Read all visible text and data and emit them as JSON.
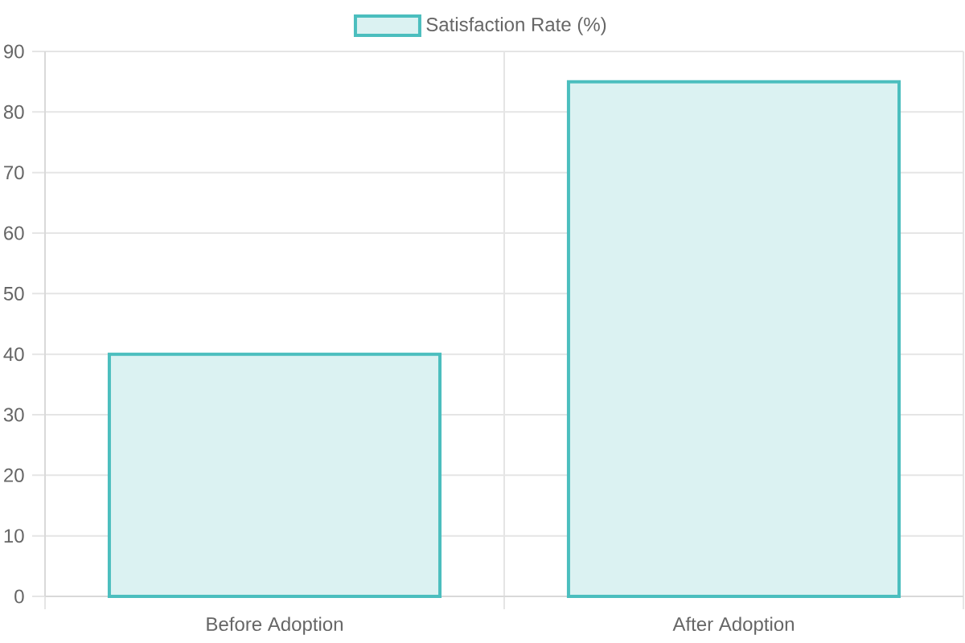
{
  "chart_data": {
    "type": "bar",
    "categories": [
      "Before Adoption",
      "After Adoption"
    ],
    "series": [
      {
        "name": "Satisfaction Rate (%)",
        "color": "#dbf2f2",
        "values": [
          40,
          85
        ]
      }
    ],
    "ylim": [
      0,
      90
    ],
    "yticks": [
      0,
      10,
      20,
      30,
      40,
      50,
      60,
      70,
      80,
      90
    ],
    "grid": true,
    "legend": "top"
  }
}
